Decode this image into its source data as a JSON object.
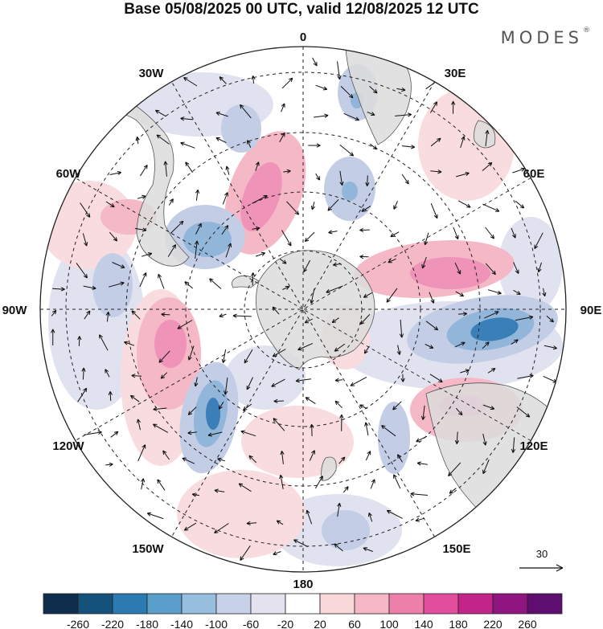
{
  "title": "Base 05/08/2025 00 UTC, valid 12/08/2025 12 UTC",
  "brand": {
    "name": "MODES",
    "mark": "®"
  },
  "map": {
    "projection": "south-polar-stereographic",
    "meridian_labels": {
      "lon_0": "0",
      "lon_30e": "30E",
      "lon_60e": "60E",
      "lon_90e": "90E",
      "lon_120e": "120E",
      "lon_150e": "150E",
      "lon_180": "180",
      "lon_150w": "150W",
      "lon_120w": "120W",
      "lon_90w": "90W",
      "lon_60w": "60W",
      "lon_30w": "30W"
    },
    "vector_reference": {
      "label": "30"
    }
  },
  "colorbar": {
    "colors": [
      "#0f2e4d",
      "#14527c",
      "#2c7ab2",
      "#5a9fcc",
      "#97bede",
      "#c7d2e9",
      "#e4e2ee",
      "#ffffff",
      "#f9d8da",
      "#f5b6c5",
      "#ed80ab",
      "#e24d9d",
      "#c2248a",
      "#8f1580",
      "#5d0e70"
    ],
    "tick_labels": [
      "-260",
      "-220",
      "-180",
      "-140",
      "-100",
      "-60",
      "-20",
      "20",
      "60",
      "100",
      "140",
      "180",
      "220",
      "260"
    ]
  },
  "field_colors": {
    "neg_weak": "#e1e2ef",
    "neg_light": "#c3cde6",
    "neg_mid": "#92b6da",
    "neg_strong": "#5a9acb",
    "neg_core": "#3b7fb9",
    "pos_weak": "#f9dcdf",
    "pos_light": "#f5b8c6",
    "pos_mid": "#ef93b8",
    "pos_strong": "#e868a8",
    "land": "#dcdcdc",
    "coast": "#555555"
  }
}
